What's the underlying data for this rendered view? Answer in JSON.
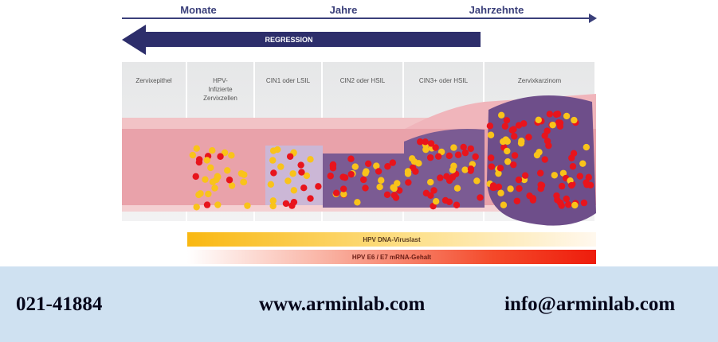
{
  "timeline": {
    "labels": [
      "Monate",
      "Jahre",
      "Jahrzehnte"
    ]
  },
  "regression_label": "REGRESSION",
  "stages": [
    "Zervixepithel",
    "HPV-\nInfizierte\nZervixzellen",
    "CIN1 oder LSIL",
    "CIN2 oder HSIL",
    "CIN3+ oder HSIL",
    "Zervixkarzinom"
  ],
  "bars": {
    "dna": "HPV DNA-Viruslast",
    "mrna": "HPV E6 / E7 mRNA-Gehalt"
  },
  "footer": {
    "phone": "021-41884",
    "website": "www.arminlab.com",
    "email": "info@arminlab.com"
  },
  "colors": {
    "navy": "#2d2e6b",
    "footer_bg": "#cfe1f1",
    "yellow_dot": "#f9c31a",
    "red_dot": "#e8141c",
    "tissue": "#e9a2aa",
    "dysplastic_cell": "#7b5b93"
  }
}
